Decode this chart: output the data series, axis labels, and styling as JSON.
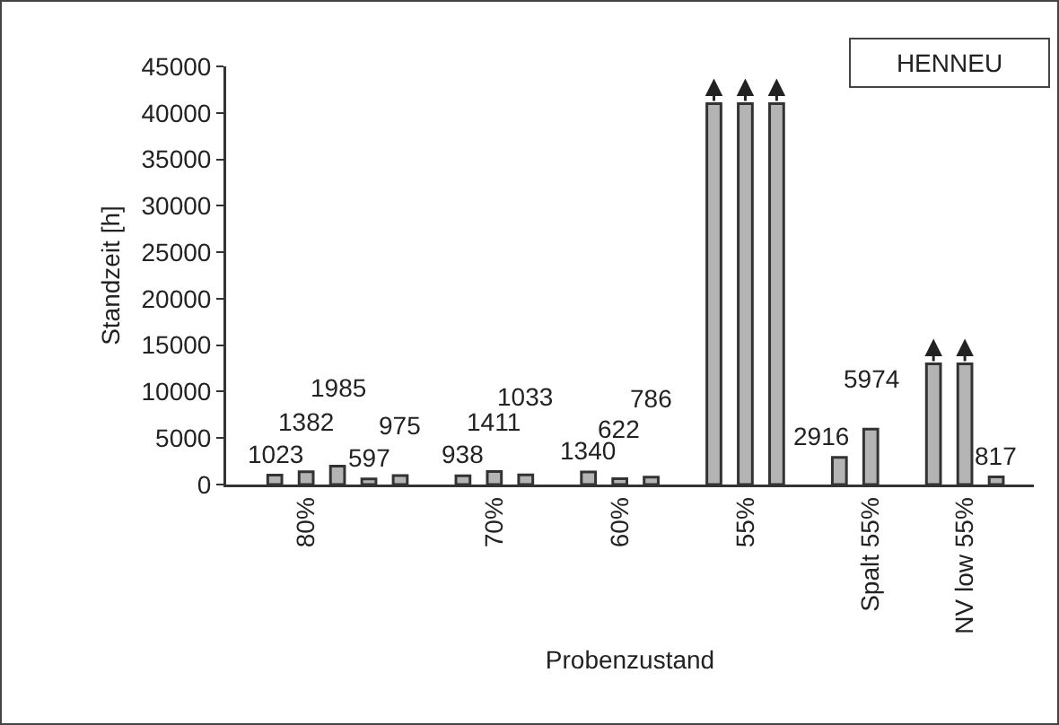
{
  "chart_data": {
    "type": "bar",
    "xlabel": "Probenzustand",
    "ylabel": "Standzeit [h]",
    "categories": [
      null,
      "80%",
      null,
      null,
      null,
      null,
      null,
      "70%",
      null,
      null,
      null,
      "60%",
      null,
      null,
      null,
      "55%",
      null,
      null,
      null,
      "Spalt 55%",
      null,
      null,
      "NV low 55%",
      null
    ],
    "values": [
      1023,
      1382,
      1985,
      597,
      975,
      null,
      938,
      1411,
      1033,
      null,
      1340,
      622,
      786,
      null,
      41000,
      41000,
      41000,
      null,
      2916,
      5974,
      null,
      13000,
      13000,
      817
    ],
    "value_labels": [
      "1023",
      "1382",
      "1985",
      "597",
      "975",
      null,
      "938",
      "1411",
      "1033",
      null,
      "1340",
      "622",
      "786",
      null,
      null,
      null,
      null,
      null,
      "2916",
      "5974",
      null,
      null,
      null,
      "817"
    ],
    "color": "#b4b4b4",
    "ylim": [
      0,
      45000
    ],
    "yticks": [
      0,
      5000,
      10000,
      15000,
      20000,
      25000,
      30000,
      35000,
      40000,
      45000
    ],
    "grid": false,
    "annotations": [
      "HENNEU"
    ]
  }
}
